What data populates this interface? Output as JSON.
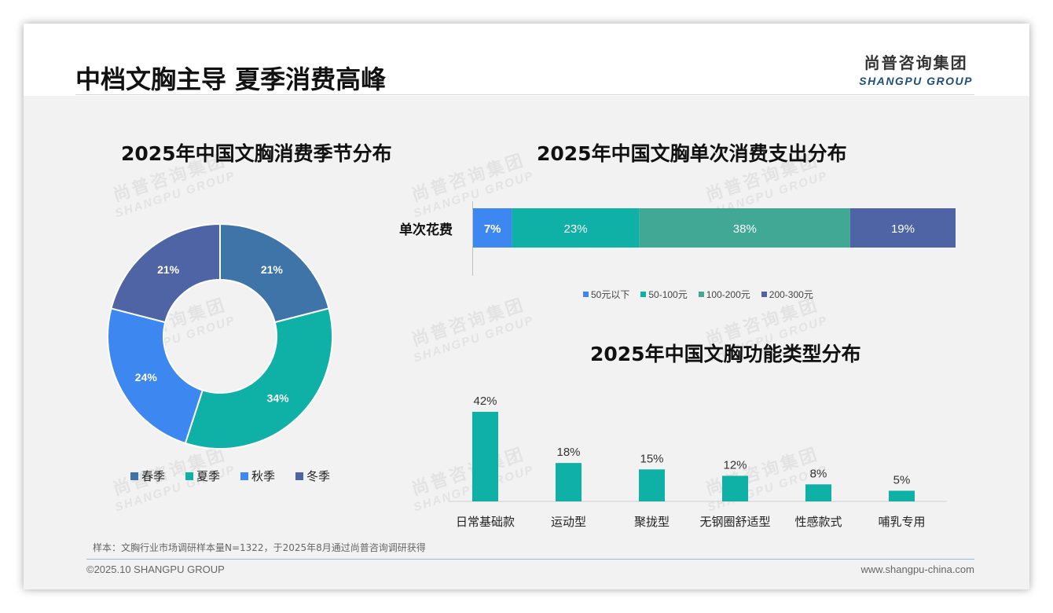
{
  "page_title": "中档文胸主导 夏季消费高峰",
  "logo": {
    "cn": "尚普咨询集团",
    "en": "SHANGPU GROUP"
  },
  "watermark": {
    "cn": "尚普咨询集团",
    "en": "SHANGPU GROUP"
  },
  "chart_data": [
    {
      "type": "pie",
      "title": "2025年中国文胸消费季节分布",
      "categories": [
        "春季",
        "夏季",
        "秋季",
        "冬季"
      ],
      "values": [
        21,
        34,
        24,
        21
      ],
      "value_labels": [
        "21%",
        "34%",
        "24%",
        "21%"
      ],
      "colors": [
        "#3e74a8",
        "#0fb1a6",
        "#3d87f0",
        "#4f64a4"
      ],
      "legend_position": "bottom"
    },
    {
      "type": "bar",
      "orientation": "horizontal-stacked",
      "title": "2025年中国文胸单次消费支出分布",
      "categories": [
        "单次花费"
      ],
      "series": [
        {
          "name": "50元以下",
          "values": [
            7
          ],
          "label": "7%",
          "color": "#3d87f0"
        },
        {
          "name": "50-100元",
          "values": [
            23
          ],
          "label": "23%",
          "color": "#0fb1a6"
        },
        {
          "name": "100-200元",
          "values": [
            38
          ],
          "label": "38%",
          "color": "#40a894"
        },
        {
          "name": "200-300元",
          "values": [
            19
          ],
          "label": "19%",
          "color": "#4f64a4"
        }
      ],
      "legend_position": "bottom"
    },
    {
      "type": "bar",
      "title": "2025年中国文胸功能类型分布",
      "categories": [
        "日常基础款",
        "运动型",
        "聚拢型",
        "无钢圈舒适型",
        "性感款式",
        "哺乳专用"
      ],
      "values": [
        42,
        18,
        15,
        12,
        8,
        5
      ],
      "value_labels": [
        "42%",
        "18%",
        "15%",
        "12%",
        "8%",
        "5%"
      ],
      "color": "#0fb1a6",
      "ylim": [
        0,
        42
      ]
    }
  ],
  "note": "样本：文胸行业市场调研样本量N=1322，于2025年8月通过尚普咨询调研获得",
  "footer": {
    "copyright": "©2025.10 SHANGPU GROUP",
    "website": "www.shangpu-china.com"
  }
}
